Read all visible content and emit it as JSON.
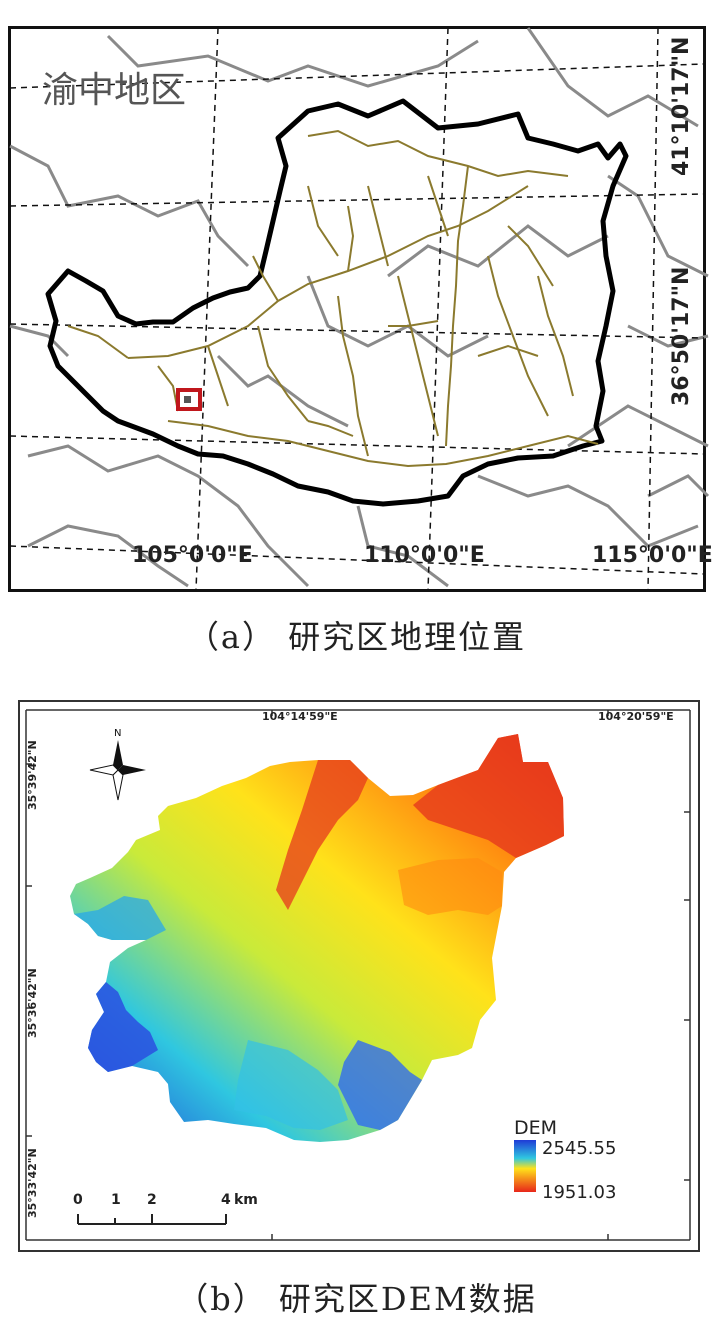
{
  "panel_a": {
    "region_label": "渝中地区",
    "lon_labels": [
      "105°0'0\"E",
      "110°0'0\"E",
      "115°0'0\"E"
    ],
    "lat_labels": [
      "41°10'17\"N",
      "36°50'17\"N"
    ],
    "colors": {
      "boundary": "#000000",
      "rivers": "#8b7a2e",
      "provinces": "#8a8a8a",
      "marker": "#c0171c"
    }
  },
  "caption_a": "（a） 研究区地理位置",
  "panel_b": {
    "lon_labels": [
      "104°14'59\"E",
      "104°20'59\"E"
    ],
    "lat_labels": [
      "35°39'42\"N",
      "35°36'42\"N",
      "35°33'42\"N"
    ],
    "north_label": "N",
    "legend": {
      "title": "DEM",
      "max": "2545.55",
      "min": "1951.03",
      "colors": [
        "#1f3bd6",
        "#2fc7e0",
        "#c9ea3a",
        "#ffe21a",
        "#ff8a10",
        "#e8261a"
      ]
    },
    "scale": {
      "ticks": [
        "0",
        "1",
        "2",
        "4"
      ],
      "unit": "km"
    }
  },
  "caption_b": "（b） 研究区DEM数据"
}
